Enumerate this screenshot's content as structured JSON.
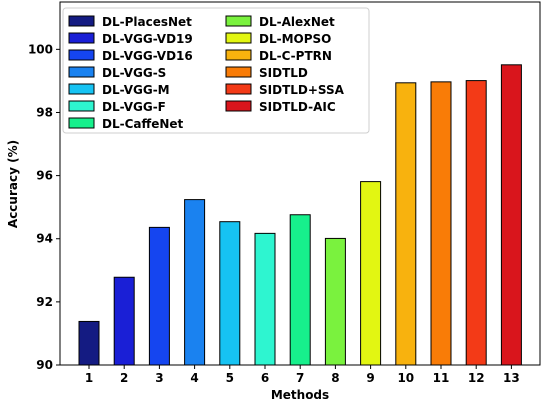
{
  "chart_data": {
    "type": "bar",
    "categories": [
      "1",
      "2",
      "3",
      "4",
      "5",
      "6",
      "7",
      "8",
      "9",
      "10",
      "11",
      "12",
      "13"
    ],
    "series": [
      {
        "name": "DL-PlacesNet",
        "value": 91.38,
        "color": "#141b82"
      },
      {
        "name": "DL-VGG-VD19",
        "value": 92.78,
        "color": "#1a1fd6"
      },
      {
        "name": "DL-VGG-VD16",
        "value": 94.36,
        "color": "#1545f0"
      },
      {
        "name": "DL-VGG-S",
        "value": 95.24,
        "color": "#1a82f0"
      },
      {
        "name": "DL-VGG-M",
        "value": 94.54,
        "color": "#16c3f3"
      },
      {
        "name": "DL-VGG-F",
        "value": 94.17,
        "color": "#2ef5d0"
      },
      {
        "name": "DL-CaffeNet",
        "value": 94.76,
        "color": "#17f08c"
      },
      {
        "name": "DL-AlexNet",
        "value": 94.01,
        "color": "#7af23e"
      },
      {
        "name": "DL-MOPSO",
        "value": 95.81,
        "color": "#e2f612"
      },
      {
        "name": "DL-C-PTRN",
        "value": 98.94,
        "color": "#f8b20e"
      },
      {
        "name": "SIDTLD",
        "value": 98.97,
        "color": "#f97c07"
      },
      {
        "name": "SIDTLD+SSA",
        "value": 99.01,
        "color": "#f33a17"
      },
      {
        "name": "SIDTLD-AIC",
        "value": 99.51,
        "color": "#d9151c"
      }
    ],
    "xlabel": "Methods",
    "ylabel": "Accuracy (%)",
    "ylim": [
      90,
      101.5
    ],
    "yticks": [
      "90",
      "92",
      "94",
      "96",
      "98",
      "100"
    ],
    "grid": false,
    "legend_position": "top-left"
  }
}
